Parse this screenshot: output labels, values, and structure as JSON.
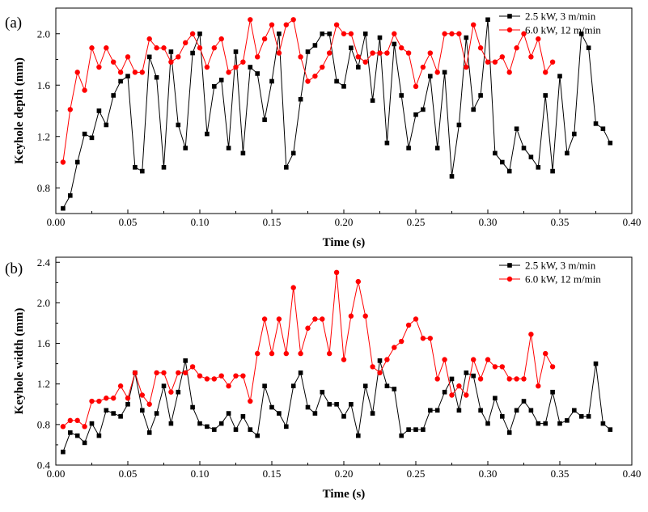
{
  "chart_data": [
    {
      "panel_label": "(a)",
      "type": "line",
      "xlabel": "Time (s)",
      "ylabel": "Keyhole depth (mm)",
      "xlim": [
        0.0,
        0.4
      ],
      "ylim": [
        0.6,
        2.2
      ],
      "xticks": [
        0.0,
        0.05,
        0.1,
        0.15,
        0.2,
        0.25,
        0.3,
        0.35,
        0.4
      ],
      "xtick_labels": [
        "0.00",
        "0.05",
        "0.10",
        "0.15",
        "0.20",
        "0.25",
        "0.30",
        "0.35",
        "0.40"
      ],
      "yticks": [
        0.8,
        1.2,
        1.6,
        2.0
      ],
      "ytick_labels": [
        "0.8",
        "1.2",
        "1.6",
        "2.0"
      ],
      "grid": false,
      "legend_position": "top-right",
      "series": [
        {
          "name": "2.5 kW, 3 m/min",
          "color": "#000000",
          "marker": "square",
          "x": [
            0.005,
            0.01,
            0.015,
            0.02,
            0.025,
            0.03,
            0.035,
            0.04,
            0.045,
            0.05,
            0.055,
            0.06,
            0.065,
            0.07,
            0.075,
            0.08,
            0.085,
            0.09,
            0.095,
            0.1,
            0.105,
            0.11,
            0.115,
            0.12,
            0.125,
            0.13,
            0.135,
            0.14,
            0.145,
            0.15,
            0.155,
            0.16,
            0.165,
            0.17,
            0.175,
            0.18,
            0.185,
            0.19,
            0.195,
            0.2,
            0.205,
            0.21,
            0.215,
            0.22,
            0.225,
            0.23,
            0.235,
            0.24,
            0.245,
            0.25,
            0.255,
            0.26,
            0.265,
            0.27,
            0.275,
            0.28,
            0.285,
            0.29,
            0.295,
            0.3,
            0.305,
            0.31,
            0.315,
            0.32,
            0.325,
            0.33,
            0.335,
            0.34,
            0.345,
            0.35,
            0.355,
            0.36,
            0.365,
            0.37,
            0.375,
            0.38,
            0.385
          ],
          "y": [
            0.64,
            0.74,
            1.0,
            1.22,
            1.19,
            1.4,
            1.29,
            1.52,
            1.63,
            1.67,
            0.96,
            0.93,
            1.82,
            1.66,
            0.96,
            1.86,
            1.29,
            1.11,
            1.85,
            2.0,
            1.22,
            1.59,
            1.64,
            1.11,
            1.86,
            1.07,
            1.74,
            1.69,
            1.33,
            1.63,
            2.0,
            0.96,
            1.07,
            1.49,
            1.86,
            1.91,
            2.0,
            2.0,
            1.63,
            1.59,
            1.89,
            1.74,
            2.0,
            1.48,
            1.97,
            1.15,
            1.92,
            1.52,
            1.11,
            1.37,
            1.41,
            1.67,
            1.11,
            1.7,
            0.89,
            1.29,
            1.97,
            1.41,
            1.52,
            2.11,
            1.07,
            1.0,
            0.93,
            1.26,
            1.11,
            1.04,
            0.96,
            1.52,
            0.93,
            1.67,
            1.07,
            1.22,
            2.0,
            1.89,
            1.3,
            1.26,
            1.15
          ]
        },
        {
          "name": "6.0 kW, 12 m/min",
          "color": "#ff0000",
          "marker": "circle",
          "x": [
            0.005,
            0.01,
            0.015,
            0.02,
            0.025,
            0.03,
            0.035,
            0.04,
            0.045,
            0.05,
            0.055,
            0.06,
            0.065,
            0.07,
            0.075,
            0.08,
            0.085,
            0.09,
            0.095,
            0.1,
            0.105,
            0.11,
            0.115,
            0.12,
            0.125,
            0.13,
            0.135,
            0.14,
            0.145,
            0.15,
            0.155,
            0.16,
            0.165,
            0.17,
            0.175,
            0.18,
            0.185,
            0.19,
            0.195,
            0.2,
            0.205,
            0.21,
            0.215,
            0.22,
            0.225,
            0.23,
            0.235,
            0.24,
            0.245,
            0.25,
            0.255,
            0.26,
            0.265,
            0.27,
            0.275,
            0.28,
            0.285,
            0.29,
            0.295,
            0.3,
            0.305,
            0.31,
            0.315,
            0.32,
            0.325,
            0.33,
            0.335,
            0.34,
            0.345
          ],
          "y": [
            1.0,
            1.41,
            1.7,
            1.56,
            1.89,
            1.74,
            1.89,
            1.78,
            1.7,
            1.82,
            1.7,
            1.7,
            1.96,
            1.89,
            1.89,
            1.78,
            1.82,
            1.93,
            2.0,
            1.89,
            1.74,
            1.89,
            1.96,
            1.7,
            1.74,
            1.78,
            2.11,
            1.82,
            1.96,
            2.07,
            1.85,
            2.07,
            2.11,
            1.82,
            1.63,
            1.67,
            1.74,
            1.85,
            2.07,
            2.0,
            2.0,
            1.82,
            1.78,
            1.85,
            1.85,
            1.85,
            2.0,
            1.89,
            1.85,
            1.59,
            1.74,
            1.85,
            1.7,
            2.0,
            2.0,
            2.0,
            1.74,
            2.07,
            1.89,
            1.78,
            1.78,
            1.82,
            1.7,
            1.89,
            2.0,
            1.82,
            1.96,
            1.7,
            1.78
          ]
        }
      ]
    },
    {
      "panel_label": "(b)",
      "type": "line",
      "xlabel": "Time (s)",
      "ylabel": "Keyhole width (mm)",
      "xlim": [
        0.0,
        0.4
      ],
      "ylim": [
        0.4,
        2.45
      ],
      "xticks": [
        0.0,
        0.05,
        0.1,
        0.15,
        0.2,
        0.25,
        0.3,
        0.35,
        0.4
      ],
      "xtick_labels": [
        "0.00",
        "0.05",
        "0.10",
        "0.15",
        "0.20",
        "0.25",
        "0.30",
        "0.35",
        "0.40"
      ],
      "yticks": [
        0.4,
        0.8,
        1.2,
        1.6,
        2.0,
        2.4
      ],
      "ytick_labels": [
        "0.4",
        "0.8",
        "1.2",
        "1.6",
        "2.0",
        "2.4"
      ],
      "grid": false,
      "legend_position": "top-right",
      "series": [
        {
          "name": "2.5 kW, 3 m/min",
          "color": "#000000",
          "marker": "square",
          "x": [
            0.005,
            0.01,
            0.015,
            0.02,
            0.025,
            0.03,
            0.035,
            0.04,
            0.045,
            0.05,
            0.055,
            0.06,
            0.065,
            0.07,
            0.075,
            0.08,
            0.085,
            0.09,
            0.095,
            0.1,
            0.105,
            0.11,
            0.115,
            0.12,
            0.125,
            0.13,
            0.135,
            0.14,
            0.145,
            0.15,
            0.155,
            0.16,
            0.165,
            0.17,
            0.175,
            0.18,
            0.185,
            0.19,
            0.195,
            0.2,
            0.205,
            0.21,
            0.215,
            0.22,
            0.225,
            0.23,
            0.235,
            0.24,
            0.245,
            0.25,
            0.255,
            0.26,
            0.265,
            0.27,
            0.275,
            0.28,
            0.285,
            0.29,
            0.295,
            0.3,
            0.305,
            0.31,
            0.315,
            0.32,
            0.325,
            0.33,
            0.335,
            0.34,
            0.345,
            0.35,
            0.355,
            0.36,
            0.365,
            0.37,
            0.375,
            0.38,
            0.385
          ],
          "y": [
            0.53,
            0.72,
            0.69,
            0.62,
            0.81,
            0.69,
            0.94,
            0.91,
            0.88,
            1.0,
            1.31,
            0.94,
            0.72,
            0.91,
            1.18,
            0.81,
            1.12,
            1.43,
            0.97,
            0.81,
            0.78,
            0.75,
            0.81,
            0.91,
            0.75,
            0.88,
            0.75,
            0.69,
            1.18,
            0.97,
            0.91,
            0.78,
            1.18,
            1.31,
            0.97,
            0.91,
            1.12,
            1.0,
            1.0,
            0.88,
            1.0,
            0.69,
            1.18,
            0.91,
            1.43,
            1.18,
            1.15,
            0.69,
            0.75,
            0.75,
            0.75,
            0.94,
            0.94,
            1.12,
            1.25,
            0.94,
            1.31,
            1.28,
            0.94,
            0.81,
            1.06,
            0.88,
            0.72,
            0.94,
            1.03,
            0.94,
            0.81,
            0.81,
            1.12,
            0.81,
            0.84,
            0.94,
            0.88,
            0.88,
            1.4,
            0.81,
            0.75
          ]
        },
        {
          "name": "6.0 kW, 12 m/min",
          "color": "#ff0000",
          "marker": "circle",
          "x": [
            0.005,
            0.01,
            0.015,
            0.02,
            0.025,
            0.03,
            0.035,
            0.04,
            0.045,
            0.05,
            0.055,
            0.06,
            0.065,
            0.07,
            0.075,
            0.08,
            0.085,
            0.09,
            0.095,
            0.1,
            0.105,
            0.11,
            0.115,
            0.12,
            0.125,
            0.13,
            0.135,
            0.14,
            0.145,
            0.15,
            0.155,
            0.16,
            0.165,
            0.17,
            0.175,
            0.18,
            0.185,
            0.19,
            0.195,
            0.2,
            0.205,
            0.21,
            0.215,
            0.22,
            0.225,
            0.23,
            0.235,
            0.24,
            0.245,
            0.25,
            0.255,
            0.26,
            0.265,
            0.27,
            0.275,
            0.28,
            0.285,
            0.29,
            0.295,
            0.3,
            0.305,
            0.31,
            0.315,
            0.32,
            0.325,
            0.33,
            0.335,
            0.34,
            0.345
          ],
          "y": [
            0.78,
            0.84,
            0.84,
            0.78,
            1.03,
            1.03,
            1.06,
            1.06,
            1.18,
            1.06,
            1.31,
            1.09,
            1.0,
            1.31,
            1.31,
            1.12,
            1.31,
            1.31,
            1.37,
            1.28,
            1.25,
            1.25,
            1.28,
            1.18,
            1.28,
            1.28,
            1.03,
            1.5,
            1.84,
            1.5,
            1.84,
            1.5,
            2.15,
            1.5,
            1.75,
            1.84,
            1.84,
            1.5,
            2.3,
            1.44,
            1.87,
            2.21,
            1.87,
            1.37,
            1.31,
            1.44,
            1.56,
            1.62,
            1.78,
            1.84,
            1.65,
            1.65,
            1.25,
            1.44,
            1.09,
            1.18,
            1.09,
            1.44,
            1.25,
            1.44,
            1.37,
            1.37,
            1.25,
            1.25,
            1.25,
            1.69,
            1.18,
            1.5,
            1.37
          ]
        }
      ]
    }
  ]
}
